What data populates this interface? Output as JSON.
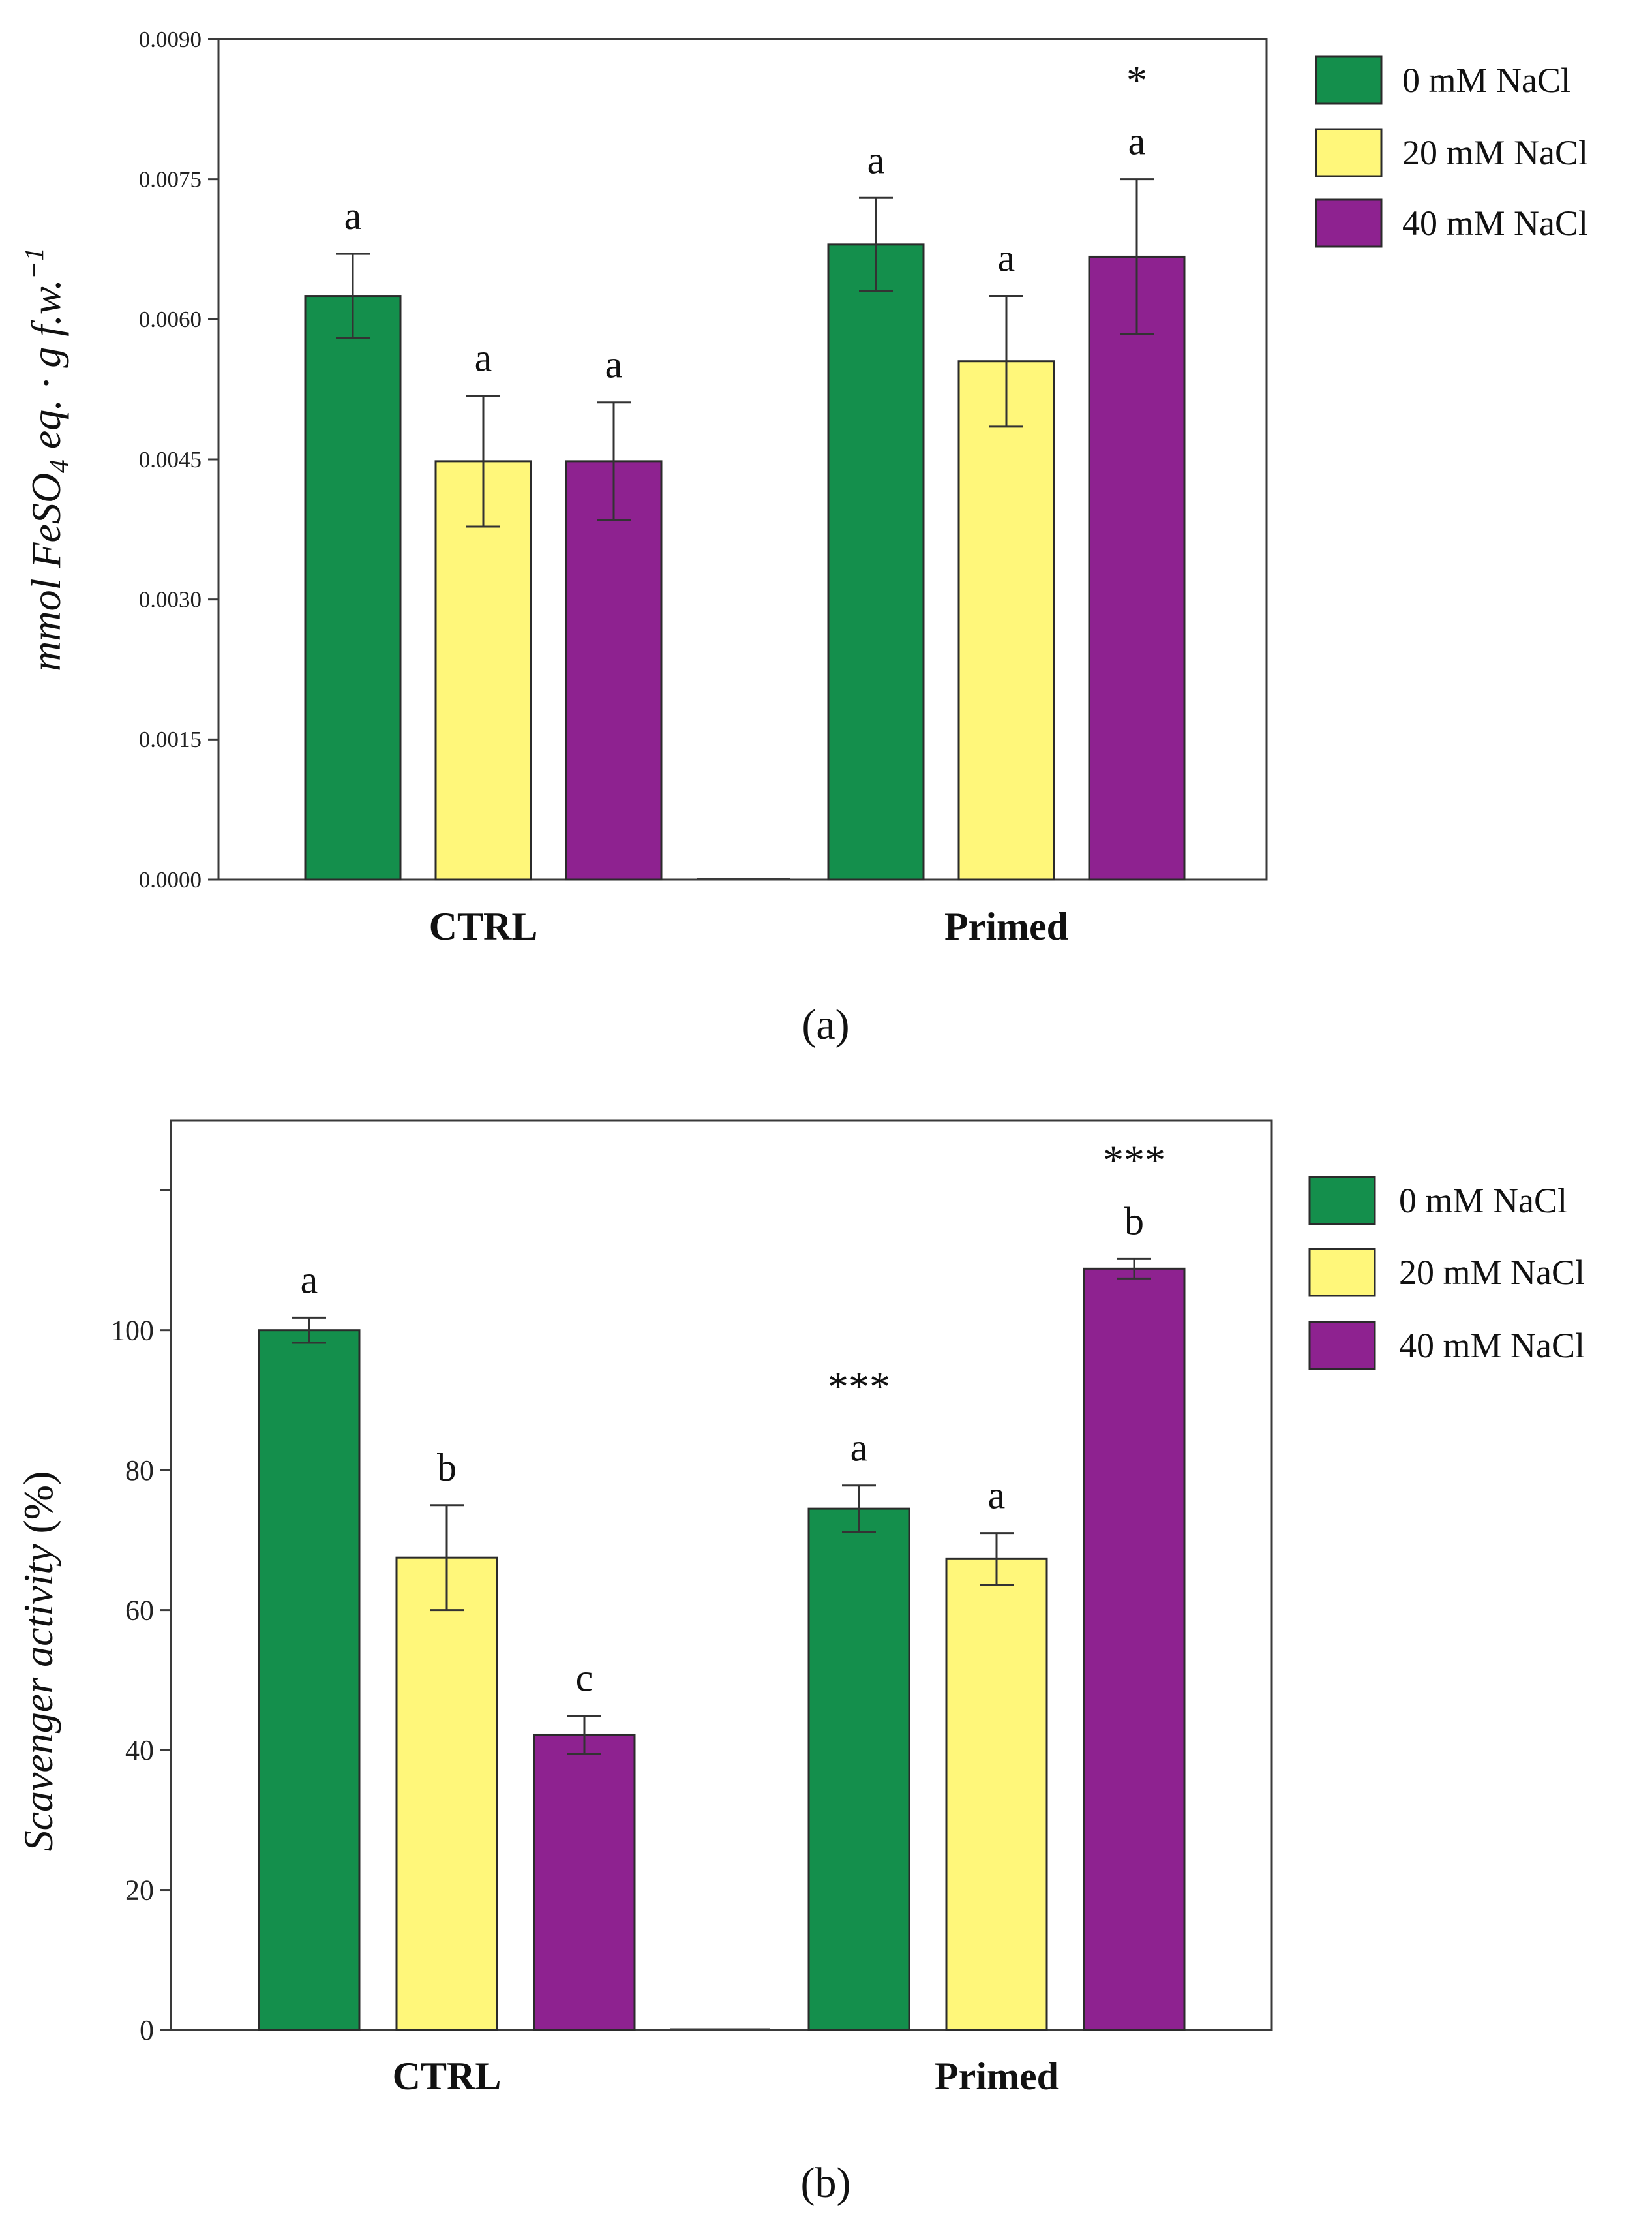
{
  "chart_data": [
    {
      "type": "bar",
      "panel_label": "(a)",
      "ylabel": "mmol FeSO₄ eq. · g f.w.⁻¹",
      "ylabel_parts": {
        "main": "mmol FeSO",
        "sub": "4",
        "rest": " eq. · g f.w.",
        "sup": "−1"
      },
      "categories": [
        "CTRL",
        "Primed"
      ],
      "ylim": [
        0,
        0.009
      ],
      "yticks": [
        0.0,
        0.0015,
        0.003,
        0.0045,
        0.006,
        0.0075,
        0.009
      ],
      "ytick_labels": [
        "0.0000",
        "0.0015",
        "0.0030",
        "0.0045",
        "0.0060",
        "0.0075",
        "0.0090"
      ],
      "grid": false,
      "legend_position": "top-right",
      "series": [
        {
          "name": "0 mM NaCl",
          "color": "#148F4C",
          "values": [
            0.00625,
            0.0068
          ],
          "errors": [
            0.00045,
            0.0005
          ],
          "letters": [
            "a",
            "a"
          ],
          "stars": [
            "",
            ""
          ]
        },
        {
          "name": "20 mM NaCl",
          "color": "#FFF77A",
          "values": [
            0.00448,
            0.00555
          ],
          "errors": [
            0.0007,
            0.0007
          ],
          "letters": [
            "a",
            "a"
          ],
          "stars": [
            "",
            ""
          ]
        },
        {
          "name": "40 mM NaCl",
          "color": "#8E2290",
          "values": [
            0.00448,
            0.00667
          ],
          "errors": [
            0.00063,
            0.00083
          ],
          "letters": [
            "a",
            "a"
          ],
          "stars": [
            "",
            "*"
          ]
        }
      ]
    },
    {
      "type": "bar",
      "panel_label": "(b)",
      "ylabel": "Scavenger activity (%)",
      "ylabel_parts": {
        "main": "Scavenger activity",
        "rest": " (%)"
      },
      "categories": [
        "CTRL",
        "Primed"
      ],
      "ylim": [
        0,
        130
      ],
      "yticks": [
        0,
        20,
        40,
        60,
        80,
        100
      ],
      "ytick_labels": [
        "0",
        "20",
        "40",
        "60",
        "80",
        "100"
      ],
      "extra_tick": 120,
      "grid": false,
      "legend_position": "top-right",
      "series": [
        {
          "name": "0 mM NaCl",
          "color": "#148F4C",
          "values": [
            100,
            74.5
          ],
          "errors": [
            1.8,
            3.3
          ],
          "letters": [
            "a",
            "a"
          ],
          "stars": [
            "",
            "***"
          ]
        },
        {
          "name": "20 mM NaCl",
          "color": "#FFF77A",
          "values": [
            67.5,
            67.3
          ],
          "errors": [
            7.5,
            3.7
          ],
          "letters": [
            "b",
            "a"
          ],
          "stars": [
            "",
            ""
          ]
        },
        {
          "name": "40 mM NaCl",
          "color": "#8E2290",
          "values": [
            42.2,
            108.8
          ],
          "errors": [
            2.7,
            1.4
          ],
          "letters": [
            "c",
            "b"
          ],
          "stars": [
            "",
            "***"
          ]
        }
      ]
    }
  ]
}
